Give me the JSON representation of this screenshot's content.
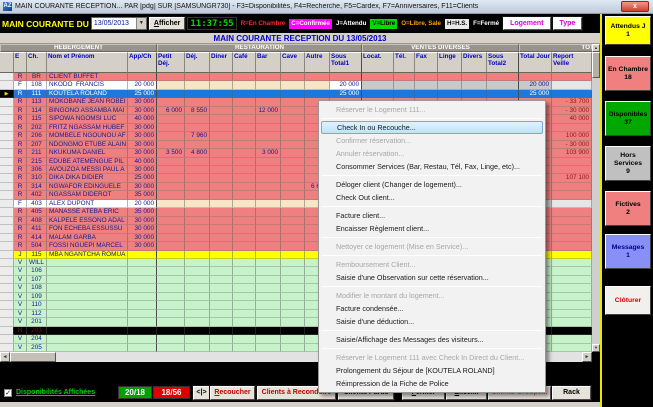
{
  "window": {
    "title": "MAIN COURANTE RECEPTION... PAR [pdg] SUR [SAMSUNGR730] - F3=Disponibilités, F4=Recherche, F5=Cardex, F7=Anniversaires, F11=Clients",
    "close_glyph": "x",
    "app_icon_text": "AZ"
  },
  "toolbar": {
    "label": "MAIN COURANTE DU",
    "date_value": "13/05/2013",
    "afficher_label": "Afficher",
    "time": "11:37:55",
    "legend": [
      {
        "text": "R=En Chambre",
        "fg": "#ff2a2a",
        "bg": "#000000"
      },
      {
        "text": "C=Confirmée",
        "fg": "#ffffff",
        "bg": "#ff00ff"
      },
      {
        "text": "J=Attendu",
        "fg": "#ffffff",
        "bg": "#000000"
      },
      {
        "text": "V=Libre",
        "fg": "#000000",
        "bg": "#00dc00"
      },
      {
        "text": "O=Libre, Sale",
        "fg": "#ffa000",
        "bg": "#000000"
      },
      {
        "text": "H=H.S.",
        "fg": "#000000",
        "bg": "#e8e8e8"
      },
      {
        "text": "F=Fermé",
        "fg": "#ffffff",
        "bg": "#000000"
      }
    ],
    "logement_label": "Logement",
    "type_label": "Type"
  },
  "subheader": "MAIN COURANTE RECEPTION DU 13/05/2013",
  "table": {
    "groups": [
      "HEBERGEMENT",
      "RESTAURATION",
      "VENTES DIVERSES",
      "TOTAUX"
    ],
    "columns": [
      "E",
      "Ch.",
      "Nom et Prénom",
      "App/Ch",
      "Petit Déj.",
      "Déj.",
      "Diner",
      "Café",
      "Bar",
      "Cave",
      "Autre",
      "Sous Total1",
      "Locat.",
      "Tél.",
      "Fax",
      "Linge",
      "Divers",
      "Sous Total2",
      "Total Jour",
      "Report Veille"
    ],
    "rows": [
      {
        "t": "R",
        "c": [
          "R",
          "BR",
          "CLIENT BUFFET",
          "",
          "",
          "",
          "",
          "",
          "",
          "",
          "",
          "",
          "",
          "",
          "",
          "",
          "",
          "",
          "",
          ""
        ]
      },
      {
        "t": "F",
        "c": [
          "F",
          "108",
          "NKODO  FRANCIS",
          "20 000",
          "",
          "",
          "",
          "",
          "",
          "",
          "",
          "20 000",
          "",
          "",
          "",
          "",
          "",
          "",
          "20 000",
          ""
        ]
      },
      {
        "t": "SEL",
        "c": [
          "R",
          "111",
          "KOUTELA ROLAND",
          "25 000",
          "",
          "",
          "",
          "",
          "",
          "",
          "",
          "25 000",
          "",
          "",
          "",
          "",
          "",
          "",
          "25 000",
          ""
        ]
      },
      {
        "t": "R",
        "c": [
          "R",
          "113",
          "MOKOBANE JEAN ROBEI",
          "30 000",
          "",
          "",
          "",
          "",
          "",
          "",
          "",
          "",
          "",
          "",
          "",
          "",
          "",
          "",
          "",
          "- 33 700"
        ]
      },
      {
        "t": "R",
        "c": [
          "R",
          "114",
          "BINGONO ASSAMBA MAI",
          "30 000",
          "6 000",
          "8 550",
          "",
          "",
          "12 000",
          "",
          "",
          "",
          "",
          "",
          "",
          "",
          "",
          "",
          "",
          "- 30 000"
        ]
      },
      {
        "t": "R",
        "c": [
          "R",
          "115",
          "SIPOWA NGOMSI LUC",
          "40 000",
          "",
          "",
          "",
          "",
          "",
          "",
          "",
          "",
          "",
          "",
          "",
          "",
          "",
          "",
          "",
          "40 000"
        ]
      },
      {
        "t": "R",
        "c": [
          "R",
          "202",
          "FRITZ NGASSAM HUBEF",
          "30 000",
          "",
          "",
          "",
          "",
          "",
          "",
          "",
          "",
          "",
          "",
          "",
          "",
          "",
          "",
          "",
          ""
        ]
      },
      {
        "t": "R",
        "c": [
          "R",
          "206",
          "MOMBELE NGOUNOU AF",
          "30 000",
          "",
          "7 960",
          "",
          "",
          "",
          "",
          "",
          "",
          "",
          "",
          "",
          "",
          "",
          "",
          "",
          "100 000"
        ]
      },
      {
        "t": "R",
        "c": [
          "R",
          "207",
          "NDONGMO ETUBE ALAIN",
          "30 000",
          "",
          "",
          "",
          "",
          "",
          "",
          "",
          "",
          "",
          "",
          "",
          "",
          "",
          "",
          "",
          "- 30 000"
        ]
      },
      {
        "t": "R",
        "c": [
          "R",
          "211",
          "NKUKUMA DANIEL",
          "30 000",
          "3 500",
          "4 800",
          "",
          "",
          "3 000",
          "",
          "",
          "",
          "",
          "",
          "",
          "",
          "",
          "",
          "",
          "103 900"
        ]
      },
      {
        "t": "R",
        "c": [
          "R",
          "215",
          "EDUBE ATEMENGUE PIL",
          "40 000",
          "",
          "",
          "",
          "",
          "",
          "",
          "",
          "",
          "",
          "",
          "",
          "",
          "",
          "",
          "",
          ""
        ]
      },
      {
        "t": "R",
        "c": [
          "R",
          "306",
          "AVOUZOA MESSI PAUL A",
          "30 000",
          "",
          "",
          "",
          "",
          "",
          "",
          "",
          "",
          "",
          "",
          "",
          "",
          "",
          "",
          "",
          ""
        ]
      },
      {
        "t": "R",
        "c": [
          "R",
          "310",
          "DIKA DIKA DIDIER",
          "25 000",
          "",
          "",
          "",
          "",
          "",
          "",
          "",
          "",
          "",
          "",
          "",
          "",
          "",
          "",
          "",
          "107 100"
        ]
      },
      {
        "t": "R",
        "c": [
          "R",
          "314",
          "NGWAFOR EDINGUELE",
          "30 000",
          "",
          "",
          "",
          "",
          "",
          "",
          "6 600",
          "",
          "",
          "",
          "",
          "",
          "",
          "",
          "",
          ""
        ]
      },
      {
        "t": "R",
        "c": [
          "R",
          "402",
          "NGASSAM DIDEROT",
          "35 000",
          "",
          "",
          "",
          "",
          "",
          "",
          "",
          "",
          "",
          "",
          "",
          "",
          "",
          "",
          "",
          ""
        ]
      },
      {
        "t": "F",
        "c": [
          "F",
          "403",
          "ALEX DUPONT",
          "20 000",
          "",
          "",
          "",
          "",
          "",
          "",
          "",
          "",
          "",
          "",
          "",
          "",
          "",
          "",
          "",
          ""
        ]
      },
      {
        "t": "R",
        "c": [
          "R",
          "405",
          "MANASSE ATEBA ERIC",
          "35 000",
          "",
          "",
          "",
          "",
          "",
          "",
          "",
          "",
          "",
          "",
          "",
          "",
          "",
          "",
          "",
          ""
        ]
      },
      {
        "t": "R",
        "c": [
          "R",
          "408",
          "KALPELE ESSONO ADAL",
          "30 000",
          "",
          "",
          "",
          "",
          "",
          "",
          "",
          "",
          "",
          "",
          "",
          "",
          "",
          "",
          "",
          ""
        ]
      },
      {
        "t": "R",
        "c": [
          "R",
          "411",
          "FON ECHEBA ESSUSSU",
          "30 000",
          "",
          "",
          "",
          "",
          "",
          "",
          "",
          "",
          "",
          "",
          "",
          "",
          "",
          "",
          "",
          ""
        ]
      },
      {
        "t": "R",
        "c": [
          "R",
          "414",
          "MALAM GARBA",
          "30 000",
          "",
          "",
          "",
          "",
          "",
          "",
          "",
          "",
          "",
          "",
          "",
          "",
          "",
          "",
          "",
          ""
        ]
      },
      {
        "t": "R",
        "c": [
          "R",
          "504",
          "FOSSI NGUEPI MARCEL",
          "30 000",
          "",
          "",
          "",
          "",
          "",
          "",
          "",
          "",
          "",
          "",
          "",
          "",
          "",
          "",
          "",
          ""
        ]
      },
      {
        "t": "J",
        "c": [
          "J",
          "115",
          "MBA NGANTCHA ROMUA",
          "",
          "",
          "",
          "",
          "",
          "",
          "",
          "",
          "",
          "",
          "",
          "",
          "",
          "",
          "",
          "",
          ""
        ]
      },
      {
        "t": "V",
        "c": [
          "V",
          "WILL",
          "",
          "",
          "",
          "",
          "",
          "",
          "",
          "",
          "",
          "",
          "",
          "",
          "",
          "",
          "",
          "",
          "",
          ""
        ]
      },
      {
        "t": "V",
        "c": [
          "V",
          "106",
          "",
          "",
          "",
          "",
          "",
          "",
          "",
          "",
          "",
          "",
          "",
          "",
          "",
          "",
          "",
          "",
          "",
          ""
        ]
      },
      {
        "t": "V",
        "c": [
          "V",
          "107",
          "",
          "",
          "",
          "",
          "",
          "",
          "",
          "",
          "",
          "",
          "",
          "",
          "",
          "",
          "",
          "",
          "",
          ""
        ]
      },
      {
        "t": "V",
        "c": [
          "V",
          "108",
          "",
          "",
          "",
          "",
          "",
          "",
          "",
          "",
          "",
          "",
          "",
          "",
          "",
          "",
          "",
          "",
          "",
          ""
        ]
      },
      {
        "t": "V",
        "c": [
          "V",
          "109",
          "",
          "",
          "",
          "",
          "",
          "",
          "",
          "",
          "",
          "",
          "",
          "",
          "",
          "",
          "",
          "",
          "",
          ""
        ]
      },
      {
        "t": "V",
        "c": [
          "V",
          "110",
          "",
          "",
          "",
          "",
          "",
          "",
          "",
          "",
          "",
          "",
          "",
          "",
          "",
          "",
          "",
          "",
          "",
          ""
        ]
      },
      {
        "t": "V",
        "c": [
          "V",
          "112",
          "",
          "",
          "",
          "",
          "",
          "",
          "",
          "",
          "",
          "",
          "",
          "",
          "",
          "",
          "",
          "",
          "",
          ""
        ]
      },
      {
        "t": "V",
        "c": [
          "V",
          "201",
          "",
          "",
          "",
          "",
          "",
          "",
          "",
          "",
          "",
          "",
          "",
          "",
          "",
          "",
          "",
          "",
          "",
          ""
        ]
      },
      {
        "t": "H",
        "c": [
          "H",
          "203",
          "",
          "",
          "",
          "",
          "",
          "",
          "",
          "",
          "",
          "",
          "",
          "",
          "",
          "",
          "",
          "",
          "",
          ""
        ]
      },
      {
        "t": "V",
        "c": [
          "V",
          "204",
          "",
          "",
          "",
          "",
          "",
          "",
          "",
          "",
          "",
          "",
          "",
          "",
          "",
          "",
          "",
          "",
          "",
          ""
        ]
      },
      {
        "t": "V",
        "c": [
          "V",
          "205",
          "",
          "",
          "",
          "",
          "",
          "",
          "",
          "",
          "",
          "",
          "",
          "",
          "",
          "",
          "",
          "",
          "",
          ""
        ]
      }
    ],
    "selected_marker": "▶"
  },
  "menu": {
    "items": [
      {
        "label": "Réserver le Logement 111...",
        "state": "disabled",
        "sep": true
      },
      {
        "label": "Check In ou Recouche...",
        "state": "highlight",
        "sep": false
      },
      {
        "label": "Confirmer réservation...",
        "state": "disabled",
        "sep": false
      },
      {
        "label": "Annuler réservation...",
        "state": "disabled",
        "sep": false
      },
      {
        "label": "Consommer Services (Bar, Restau, Tél, Fax, Linge, etc)...",
        "state": "normal",
        "sep": true
      },
      {
        "label": "Déloger client (Changer de logement)...",
        "state": "normal",
        "sep": false
      },
      {
        "label": "Check Out client...",
        "state": "normal",
        "sep": true
      },
      {
        "label": "Facture client...",
        "state": "normal",
        "sep": false
      },
      {
        "label": "Encaisser Règlement client...",
        "state": "normal",
        "sep": true
      },
      {
        "label": "Nettoyer ce logement (Mise en Service)...",
        "state": "disabled",
        "sep": true
      },
      {
        "label": "Remboursement Client...",
        "state": "disabled",
        "sep": false
      },
      {
        "label": "Saisie d'une Observation sur cette réservation...",
        "state": "normal",
        "sep": true
      },
      {
        "label": "Modifier le montant du logement...",
        "state": "disabled",
        "sep": false
      },
      {
        "label": "Facture condensée...",
        "state": "normal",
        "sep": false
      },
      {
        "label": "Saisie d'une déduction...",
        "state": "normal",
        "sep": true
      },
      {
        "label": "Saisie/Affichage des Messages des visiteurs...",
        "state": "normal",
        "sep": true
      },
      {
        "label": "Réserver le Logement 111 avec Check In Direct du Client...",
        "state": "disabled",
        "sep": false
      },
      {
        "label": "Prolongement du Séjour de [KOUTELA ROLAND]",
        "state": "normal",
        "sep": false
      },
      {
        "label": "Réimpression de la Fiche de Police",
        "state": "normal",
        "sep": false
      }
    ]
  },
  "sidebar": {
    "buttons": [
      {
        "label": "Attendus J",
        "value": "1",
        "bg": "#ffff00",
        "fg": "#000000"
      },
      {
        "label": "En Chambre",
        "value": "18",
        "bg": "#f08080",
        "fg": "#000000"
      },
      {
        "label": "Disponibles",
        "value": "37",
        "bg": "#00a800",
        "fg": "#000000"
      },
      {
        "label": "Hors Services",
        "value": "9",
        "bg": "#c0c0c0",
        "fg": "#000000"
      },
      {
        "label": "Fictives",
        "value": "2",
        "bg": "#f08080",
        "fg": "#000000"
      },
      {
        "label": "Messages",
        "value": "1",
        "bg": "#8890f8",
        "fg": "#00008c"
      }
    ],
    "cloturer_label": "Clôturer"
  },
  "statusbar": {
    "checkbox_checked": "✓",
    "checkbox_label": "Disponibilités Affichées",
    "green_counter": "20/18",
    "red_counter": "18/56",
    "nav_label": "<|>",
    "buttons": [
      {
        "label": "Recoucher",
        "style": "red"
      },
      {
        "label": "Clients à Reconduire",
        "style": "red"
      },
      {
        "label": "Clients Partis",
        "style": "black"
      },
      {
        "label": "Fermer",
        "style": "black"
      },
      {
        "label": "Excel...",
        "style": "black"
      },
      {
        "label": "Clients Groupe...",
        "style": "pink"
      },
      {
        "label": "Rack",
        "style": "black"
      }
    ]
  }
}
